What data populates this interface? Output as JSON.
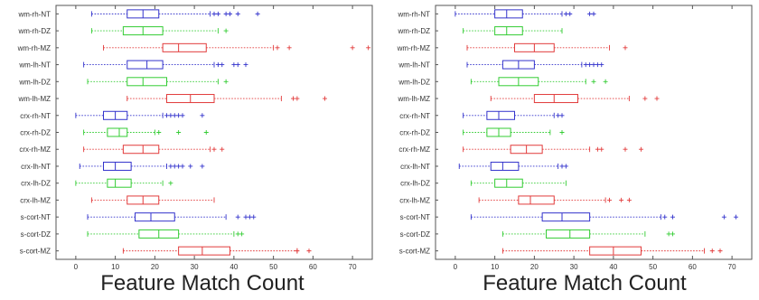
{
  "chart_data": [
    {
      "type": "boxplot",
      "orientation": "horizontal",
      "xlabel": "Feature Match Count",
      "xlim": [
        -5,
        75
      ],
      "xticks": [
        0,
        10,
        20,
        30,
        40,
        50,
        60,
        70
      ],
      "grid": false,
      "categories": [
        "wm-rh-NT",
        "wm-rh-DZ",
        "wm-rh-MZ",
        "wm-lh-NT",
        "wm-lh-DZ",
        "wm-lh-MZ",
        "crx-rh-NT",
        "crx-rh-DZ",
        "crx-rh-MZ",
        "crx-lh-NT",
        "crx-lh-DZ",
        "crx-lh-MZ",
        "s-cort-NT",
        "s-cort-DZ",
        "s-cort-MZ"
      ],
      "boxes": [
        {
          "label": "wm-rh-NT",
          "group": "NT",
          "whisker_low": 4,
          "q1": 13,
          "median": 17,
          "q3": 21,
          "whisker_high": 34,
          "outliers": [
            35,
            36,
            38,
            39,
            41,
            46
          ]
        },
        {
          "label": "wm-rh-DZ",
          "group": "DZ",
          "whisker_low": 4,
          "q1": 12,
          "median": 17,
          "q3": 22,
          "whisker_high": 36,
          "outliers": [
            38
          ]
        },
        {
          "label": "wm-rh-MZ",
          "group": "MZ",
          "whisker_low": 7,
          "q1": 22,
          "median": 26,
          "q3": 33,
          "whisker_high": 50,
          "outliers": [
            51,
            54,
            70,
            74
          ]
        },
        {
          "label": "wm-lh-NT",
          "group": "NT",
          "whisker_low": 2,
          "q1": 13,
          "median": 18,
          "q3": 22,
          "whisker_high": 35,
          "outliers": [
            36,
            37,
            40,
            41,
            43
          ]
        },
        {
          "label": "wm-lh-DZ",
          "group": "DZ",
          "whisker_low": 3,
          "q1": 13,
          "median": 17,
          "q3": 23,
          "whisker_high": 36,
          "outliers": [
            38
          ]
        },
        {
          "label": "wm-lh-MZ",
          "group": "MZ",
          "whisker_low": 13,
          "q1": 23,
          "median": 29,
          "q3": 35,
          "whisker_high": 52,
          "outliers": [
            55,
            56,
            63
          ]
        },
        {
          "label": "crx-rh-NT",
          "group": "NT",
          "whisker_low": 0,
          "q1": 7,
          "median": 10,
          "q3": 13,
          "whisker_high": 22,
          "outliers": [
            23,
            24,
            25,
            26,
            27,
            32
          ]
        },
        {
          "label": "crx-rh-DZ",
          "group": "DZ",
          "whisker_low": 2,
          "q1": 8,
          "median": 11,
          "q3": 13,
          "whisker_high": 20,
          "outliers": [
            21,
            26,
            33
          ]
        },
        {
          "label": "crx-rh-MZ",
          "group": "MZ",
          "whisker_low": 2,
          "q1": 12,
          "median": 17,
          "q3": 21,
          "whisker_high": 34,
          "outliers": [
            35,
            37
          ]
        },
        {
          "label": "crx-lh-NT",
          "group": "NT",
          "whisker_low": 1,
          "q1": 7,
          "median": 10,
          "q3": 14,
          "whisker_high": 23,
          "outliers": [
            24,
            25,
            26,
            27,
            29,
            32
          ]
        },
        {
          "label": "crx-lh-DZ",
          "group": "DZ",
          "whisker_low": 0,
          "q1": 8,
          "median": 10,
          "q3": 14,
          "whisker_high": 22,
          "outliers": [
            24
          ]
        },
        {
          "label": "crx-lh-MZ",
          "group": "MZ",
          "whisker_low": 4,
          "q1": 13,
          "median": 17,
          "q3": 21,
          "whisker_high": 35,
          "outliers": []
        },
        {
          "label": "s-cort-NT",
          "group": "NT",
          "whisker_low": 3,
          "q1": 15,
          "median": 19,
          "q3": 25,
          "whisker_high": 38,
          "outliers": [
            41,
            43,
            44,
            45
          ]
        },
        {
          "label": "s-cort-DZ",
          "group": "DZ",
          "whisker_low": 3,
          "q1": 16,
          "median": 21,
          "q3": 26,
          "whisker_high": 40,
          "outliers": [
            41,
            42
          ]
        },
        {
          "label": "s-cort-MZ",
          "group": "MZ",
          "whisker_low": 12,
          "q1": 26,
          "median": 32,
          "q3": 39,
          "whisker_high": 56,
          "outliers": [
            56,
            59
          ]
        }
      ]
    },
    {
      "type": "boxplot",
      "orientation": "horizontal",
      "xlabel": "Feature Match Count",
      "xlim": [
        -5,
        75
      ],
      "xticks": [
        0,
        10,
        20,
        30,
        40,
        50,
        60,
        70
      ],
      "grid": false,
      "categories": [
        "wm-rh-NT",
        "wm-rh-DZ",
        "wm-rh-MZ",
        "wm-lh-NT",
        "wm-lh-DZ",
        "wm-lh-MZ",
        "crx-rh-NT",
        "crx-rh-DZ",
        "crx-rh-MZ",
        "crx-lh-NT",
        "crx-lh-DZ",
        "crx-lh-MZ",
        "s-cort-NT",
        "s-cort-DZ",
        "s-cort-MZ"
      ],
      "boxes": [
        {
          "label": "wm-rh-NT",
          "group": "NT",
          "whisker_low": 0,
          "q1": 10,
          "median": 13,
          "q3": 17,
          "whisker_high": 27,
          "outliers": [
            28,
            29,
            34,
            35
          ]
        },
        {
          "label": "wm-rh-DZ",
          "group": "DZ",
          "whisker_low": 2,
          "q1": 10,
          "median": 13,
          "q3": 17,
          "whisker_high": 27,
          "outliers": []
        },
        {
          "label": "wm-rh-MZ",
          "group": "MZ",
          "whisker_low": 3,
          "q1": 15,
          "median": 20,
          "q3": 25,
          "whisker_high": 39,
          "outliers": [
            43
          ]
        },
        {
          "label": "wm-lh-NT",
          "group": "NT",
          "whisker_low": 3,
          "q1": 12,
          "median": 16,
          "q3": 20,
          "whisker_high": 32,
          "outliers": [
            33,
            34,
            35,
            36,
            37
          ]
        },
        {
          "label": "wm-lh-DZ",
          "group": "DZ",
          "whisker_low": 4,
          "q1": 11,
          "median": 16,
          "q3": 21,
          "whisker_high": 33,
          "outliers": [
            35,
            38
          ]
        },
        {
          "label": "wm-lh-MZ",
          "group": "MZ",
          "whisker_low": 9,
          "q1": 20,
          "median": 25,
          "q3": 31,
          "whisker_high": 44,
          "outliers": [
            48,
            51
          ]
        },
        {
          "label": "crx-rh-NT",
          "group": "NT",
          "whisker_low": 2,
          "q1": 8,
          "median": 11,
          "q3": 15,
          "whisker_high": 25,
          "outliers": [
            26,
            27
          ]
        },
        {
          "label": "crx-rh-DZ",
          "group": "DZ",
          "whisker_low": 2,
          "q1": 8,
          "median": 11,
          "q3": 14,
          "whisker_high": 24,
          "outliers": [
            27
          ]
        },
        {
          "label": "crx-rh-MZ",
          "group": "MZ",
          "whisker_low": 2,
          "q1": 14,
          "median": 18,
          "q3": 22,
          "whisker_high": 34,
          "outliers": [
            36,
            37,
            43,
            47
          ]
        },
        {
          "label": "crx-lh-NT",
          "group": "NT",
          "whisker_low": 1,
          "q1": 9,
          "median": 12,
          "q3": 16,
          "whisker_high": 26,
          "outliers": [
            27,
            28
          ]
        },
        {
          "label": "crx-lh-DZ",
          "group": "DZ",
          "whisker_low": 4,
          "q1": 10,
          "median": 13,
          "q3": 17,
          "whisker_high": 28,
          "outliers": []
        },
        {
          "label": "crx-lh-MZ",
          "group": "MZ",
          "whisker_low": 6,
          "q1": 16,
          "median": 19,
          "q3": 25,
          "whisker_high": 38,
          "outliers": [
            39,
            42,
            44
          ]
        },
        {
          "label": "s-cort-NT",
          "group": "NT",
          "whisker_low": 4,
          "q1": 22,
          "median": 27,
          "q3": 34,
          "whisker_high": 52,
          "outliers": [
            53,
            55,
            68,
            71
          ]
        },
        {
          "label": "s-cort-DZ",
          "group": "DZ",
          "whisker_low": 12,
          "q1": 23,
          "median": 29,
          "q3": 34,
          "whisker_high": 48,
          "outliers": [
            54,
            55
          ]
        },
        {
          "label": "s-cort-MZ",
          "group": "MZ",
          "whisker_low": 12,
          "q1": 34,
          "median": 40,
          "q3": 47,
          "whisker_high": 63,
          "outliers": [
            65,
            67
          ]
        }
      ]
    }
  ],
  "colors": {
    "NT": "#3333cc",
    "DZ": "#33cc33",
    "MZ": "#e23b3b",
    "axis": "#555555",
    "text": "#333333"
  }
}
